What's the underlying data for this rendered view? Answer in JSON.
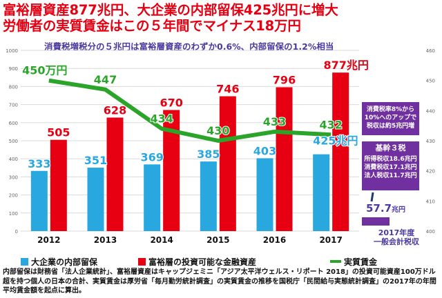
{
  "headline": {
    "line1": "富裕層資産877兆円、大企業の内部留保425兆円に増大",
    "line2": "労働者の実質賃金はこの５年間でマイナス18万円"
  },
  "subtitle": "消費税増税分の５兆円は富裕層資産のわずか0.6%、内部留保の1.2%相当",
  "colors": {
    "retained": "#29a8e0",
    "wealth": "#e60012",
    "wage": "#2aa52a",
    "purple": "#7030a0",
    "headline": "#e60012"
  },
  "chart_data": {
    "type": "bar",
    "categories": [
      "2012",
      "2013",
      "2014",
      "2015",
      "2016",
      "2017"
    ],
    "left_axis": {
      "ylim": [
        0,
        1000
      ],
      "ticks": [
        "0",
        "100",
        "200",
        "300",
        "400",
        "500",
        "600",
        "700",
        "800",
        "900",
        "1000"
      ]
    },
    "right_axis": {
      "ylim": [
        400,
        460
      ],
      "ticks": [
        "400",
        "410",
        "420",
        "430",
        "440",
        "450",
        "460"
      ]
    },
    "grid": true,
    "legend_position": "bottom",
    "series": [
      {
        "name": "大企業の内部留保",
        "kind": "bar",
        "axis": "left",
        "values": [
          333,
          351,
          369,
          385,
          403,
          425
        ],
        "labels": [
          "333",
          "351",
          "369",
          "385",
          "403",
          "425兆円"
        ]
      },
      {
        "name": "富裕層の投資可能な金融資産",
        "kind": "bar",
        "axis": "left",
        "values": [
          505,
          628,
          670,
          746,
          796,
          877
        ],
        "labels": [
          "505",
          "628",
          "670",
          "746",
          "796",
          "877兆円"
        ]
      },
      {
        "name": "実質賃金",
        "kind": "line",
        "axis": "right",
        "values": [
          450,
          447,
          434,
          430,
          433,
          432
        ],
        "labels": [
          "450万円",
          "447",
          "434",
          "430",
          "433",
          "432"
        ]
      }
    ]
  },
  "notes": {
    "note1": [
      "消費税率8%から",
      "10%へのアップで",
      "税収は約5兆円増"
    ],
    "note2_title": "基幹３税",
    "note2_lines": [
      "所得税収18.6兆円",
      "消費税収17.1兆円",
      "法人税収11.7兆円"
    ],
    "tax_value": "57.7",
    "tax_unit": "兆円",
    "tax_caption": [
      "2017年度",
      "一般会計税収"
    ]
  },
  "footnote": "内部留保は財務省「法人企業統計」、富裕層資産はキャップジェミニ「アジア太平洋ウェルス・リポート 2018」の投資可能資産100万ドル超を持つ個人の日本の合計、実質賃金は厚労省「毎月勤労統計調査」の実質賃金の推移を国税庁「民間給与実態統計調査」の2017年の年間平均賃金額を起点に算出。"
}
